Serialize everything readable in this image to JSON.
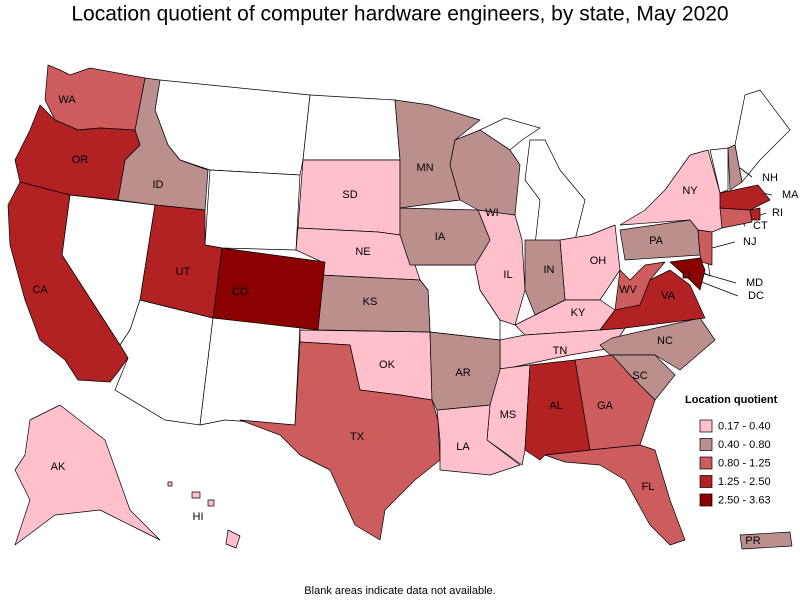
{
  "title": "Location quotient of computer hardware engineers, by state, May 2020",
  "note": "Blank areas indicate data not available.",
  "legend": {
    "title": "Location quotient",
    "items": [
      {
        "label": "0.17 - 0.40",
        "color": "#ffc0cb",
        "states": [
          "SD",
          "NE",
          "OK",
          "IL",
          "OH",
          "KY",
          "TN",
          "MS",
          "LA",
          "NY",
          "AK",
          "HI"
        ]
      },
      {
        "label": "0.40 - 0.80",
        "color": "#bc8f8f",
        "states": [
          "ID",
          "MN",
          "IA",
          "WI",
          "KS",
          "AR",
          "IN",
          "PA",
          "NC",
          "SC",
          "NH",
          "PR"
        ]
      },
      {
        "label": "0.80 - 1.25",
        "color": "#cd5c5c",
        "states": [
          "WA",
          "TX",
          "GA",
          "FL",
          "WV",
          "NJ",
          "CT"
        ]
      },
      {
        "label": "1.25 - 2.50",
        "color": "#b22222",
        "states": [
          "OR",
          "CA",
          "UT",
          "AL",
          "VA",
          "MA",
          "RI"
        ]
      },
      {
        "label": "2.50 - 3.63",
        "color": "#8b0000",
        "states": [
          "CO",
          "MD",
          "DC"
        ]
      }
    ]
  }
}
